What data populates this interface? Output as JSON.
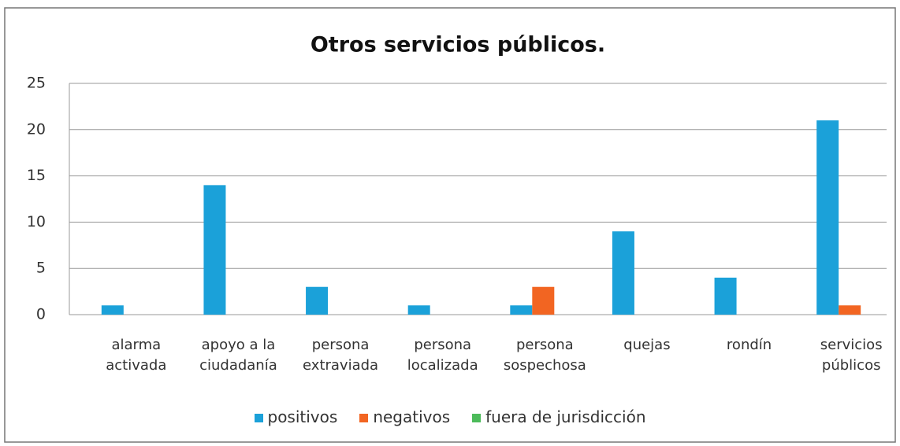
{
  "chart_data": {
    "type": "bar",
    "title": "Otros servicios públicos.",
    "categories": [
      "alarma activada",
      "apoyo a la ciudadanía",
      "persona extraviada",
      "persona localizada",
      "persona sospechosa",
      "quejas",
      "rondín",
      "servicios públicos"
    ],
    "series": [
      {
        "name": "positivos",
        "color": "#1ba1d9",
        "values": [
          1,
          14,
          3,
          1,
          1,
          9,
          4,
          21
        ]
      },
      {
        "name": "negativos",
        "color": "#f26522",
        "values": [
          0,
          0,
          0,
          0,
          3,
          0,
          0,
          1
        ]
      },
      {
        "name": "fuera de jurisdicción",
        "color": "#4cbb5a",
        "values": [
          0,
          0,
          0,
          0,
          0,
          0,
          0,
          0
        ]
      }
    ],
    "ylim": [
      0,
      25
    ],
    "yticks": [
      0,
      5,
      10,
      15,
      20,
      25
    ],
    "grid": true,
    "legend": "bottom"
  }
}
